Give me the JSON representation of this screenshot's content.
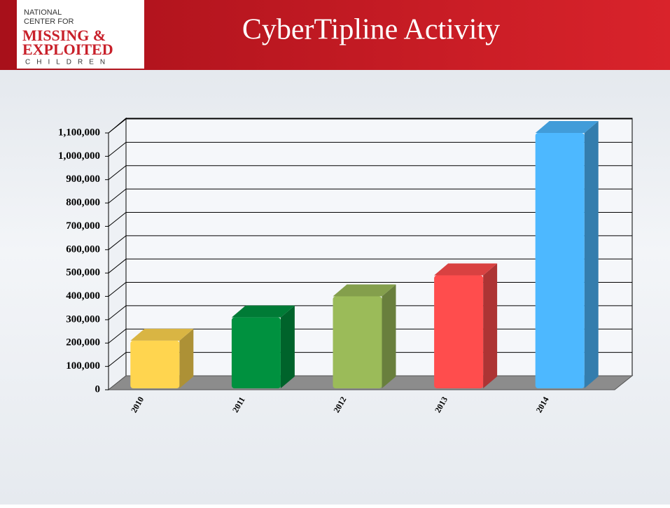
{
  "logo": {
    "line1": "NATIONAL",
    "line2": "CENTER FOR",
    "line3": "MISSING &",
    "line4": "EXPLOITED",
    "line5": "CHILDREN"
  },
  "chart_data": {
    "type": "bar",
    "title": "CyberTipline Activity",
    "categories": [
      "2010",
      "2011",
      "2012",
      "2013",
      "2014"
    ],
    "values": [
      210000,
      310000,
      400000,
      490000,
      1100000
    ],
    "colors": [
      "#ffd54f",
      "#00913f",
      "#9bbb59",
      "#ff4d4d",
      "#4db8ff"
    ],
    "ylim": [
      0,
      1100000
    ],
    "yticks": [
      0,
      {
        "value": 100000,
        "label": "100,000"
      },
      {
        "value": 200000,
        "label": "200,000"
      },
      {
        "value": 300000,
        "label": "300,000"
      },
      {
        "value": 400000,
        "label": "400,000"
      },
      {
        "value": 500000,
        "label": "500,000"
      },
      {
        "value": 600000,
        "label": "600,000"
      },
      {
        "value": 700000,
        "label": "700,000"
      },
      {
        "value": 800000,
        "label": "800,000"
      },
      {
        "value": 900000,
        "label": "900,000"
      },
      {
        "value": 1000000,
        "label": "1,000,000"
      },
      {
        "value": 1100000,
        "label": "1,100,000"
      }
    ],
    "grid": true
  }
}
